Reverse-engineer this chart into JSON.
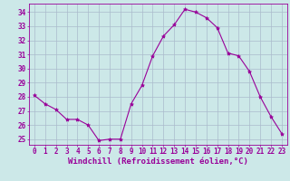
{
  "x": [
    0,
    1,
    2,
    3,
    4,
    5,
    6,
    7,
    8,
    9,
    10,
    11,
    12,
    13,
    14,
    15,
    16,
    17,
    18,
    19,
    20,
    21,
    22,
    23
  ],
  "y": [
    28.1,
    27.5,
    27.1,
    26.4,
    26.4,
    26.0,
    24.9,
    25.0,
    25.0,
    27.5,
    28.8,
    30.9,
    32.3,
    33.1,
    34.2,
    34.0,
    33.6,
    32.9,
    31.1,
    30.9,
    29.8,
    28.0,
    26.6,
    25.4
  ],
  "line_color": "#990099",
  "marker": "*",
  "marker_color": "#990099",
  "bg_color": "#cce8e8",
  "grid_color": "#aabbcc",
  "xlabel": "Windchill (Refroidissement éolien,°C)",
  "xlabel_color": "#990099",
  "tick_color": "#990099",
  "ylabel_ticks": [
    25,
    26,
    27,
    28,
    29,
    30,
    31,
    32,
    33,
    34
  ],
  "ylim": [
    24.6,
    34.6
  ],
  "xlim": [
    -0.5,
    23.5
  ],
  "tick_fontsize": 5.5,
  "xlabel_fontsize": 6.5
}
